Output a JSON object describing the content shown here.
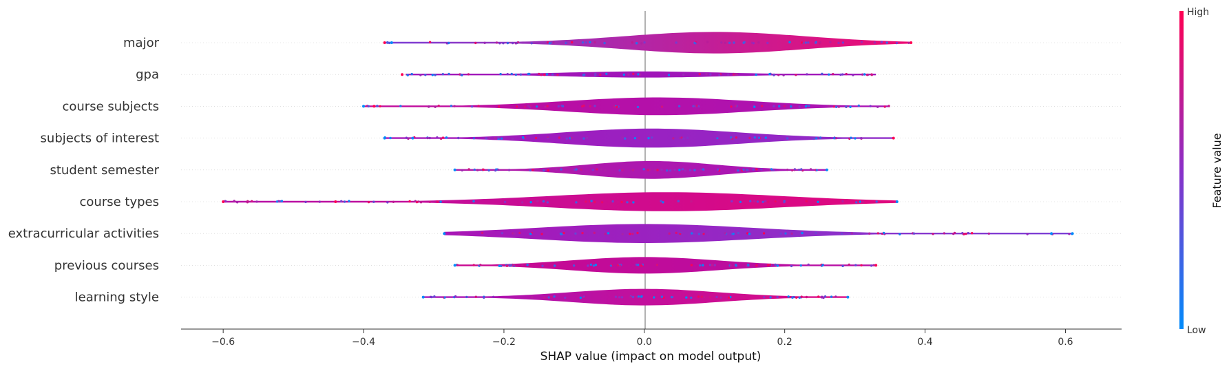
{
  "chart_data": {
    "type": "scatter",
    "subtype": "shap-violin-summary",
    "xlabel": "SHAP value (impact on model output)",
    "xlim": [
      -0.66,
      0.68
    ],
    "xticks": [
      -0.6,
      -0.4,
      -0.2,
      0.0,
      0.2,
      0.4,
      0.6
    ],
    "xtick_labels": [
      "−0.6",
      "−0.4",
      "−0.2",
      "0.0",
      "0.2",
      "0.4",
      "0.6"
    ],
    "colorbar": {
      "title": "Feature value",
      "high_label": "High",
      "low_label": "Low",
      "high_color": "#ff0052",
      "low_color": "#008bfb"
    },
    "features": [
      {
        "name": "major",
        "min": -0.37,
        "max": 0.38,
        "peak": 0.1,
        "width": 0.7,
        "low_side_color": "#7a3fd6",
        "high_side_color": "#ee0a72",
        "outliers": [
          {
            "x": 0.38,
            "v": 1
          },
          {
            "x": -0.37,
            "v": 1
          },
          {
            "x": -0.36,
            "v": 0
          }
        ]
      },
      {
        "name": "gpa",
        "min": -0.34,
        "max": 0.33,
        "peak": 0.0,
        "width": 0.08,
        "low_side_color": "#a015b9",
        "high_side_color": "#a015b9",
        "outliers": [
          {
            "x": -0.345,
            "v": 1
          }
        ]
      },
      {
        "name": "course subjects",
        "min": -0.4,
        "max": 0.35,
        "peak": 0.02,
        "width": 0.55,
        "low_side_color": "#c20a9a",
        "high_side_color": "#a815b6",
        "outliers": [
          {
            "x": -0.4,
            "v": 0
          },
          {
            "x": -0.385,
            "v": 1
          }
        ]
      },
      {
        "name": "subjects of interest",
        "min": -0.37,
        "max": 0.355,
        "peak": 0.01,
        "width": 0.6,
        "low_side_color": "#a515b8",
        "high_side_color": "#8e2dc9",
        "outliers": [
          {
            "x": -0.37,
            "v": 0
          },
          {
            "x": -0.33,
            "v": 0
          },
          {
            "x": 0.355,
            "v": 1
          }
        ]
      },
      {
        "name": "student semester",
        "min": -0.27,
        "max": 0.26,
        "peak": 0.01,
        "width": 0.55,
        "low_side_color": "#b01aa8",
        "high_side_color": "#a915b6",
        "outliers": [
          {
            "x": -0.27,
            "v": 0
          },
          {
            "x": 0.26,
            "v": 0
          }
        ]
      },
      {
        "name": "course types",
        "min": -0.6,
        "max": 0.36,
        "peak": 0.03,
        "width": 0.6,
        "low_side_color": "#b510a6",
        "high_side_color": "#e0087e",
        "outliers": [
          {
            "x": -0.6,
            "v": 1
          },
          {
            "x": -0.44,
            "v": 1
          },
          {
            "x": 0.36,
            "v": 0
          }
        ]
      },
      {
        "name": "extracurricular activities",
        "min": -0.285,
        "max": 0.61,
        "peak": 0.0,
        "width": 0.6,
        "low_side_color": "#a915b6",
        "high_side_color": "#7a3fd6",
        "outliers": [
          {
            "x": 0.58,
            "v": 0
          },
          {
            "x": 0.61,
            "v": 0
          },
          {
            "x": -0.285,
            "v": 0
          }
        ]
      },
      {
        "name": "previous courses",
        "min": -0.27,
        "max": 0.33,
        "peak": 0.0,
        "width": 0.5,
        "low_side_color": "#c90890",
        "high_side_color": "#b510a6",
        "outliers": [
          {
            "x": 0.33,
            "v": 1
          },
          {
            "x": -0.27,
            "v": 0
          }
        ]
      },
      {
        "name": "learning style",
        "min": -0.315,
        "max": 0.29,
        "peak": 0.0,
        "width": 0.5,
        "low_side_color": "#a515b8",
        "high_side_color": "#dc0a82",
        "outliers": [
          {
            "x": -0.315,
            "v": 0
          },
          {
            "x": 0.29,
            "v": 0
          }
        ]
      }
    ]
  }
}
